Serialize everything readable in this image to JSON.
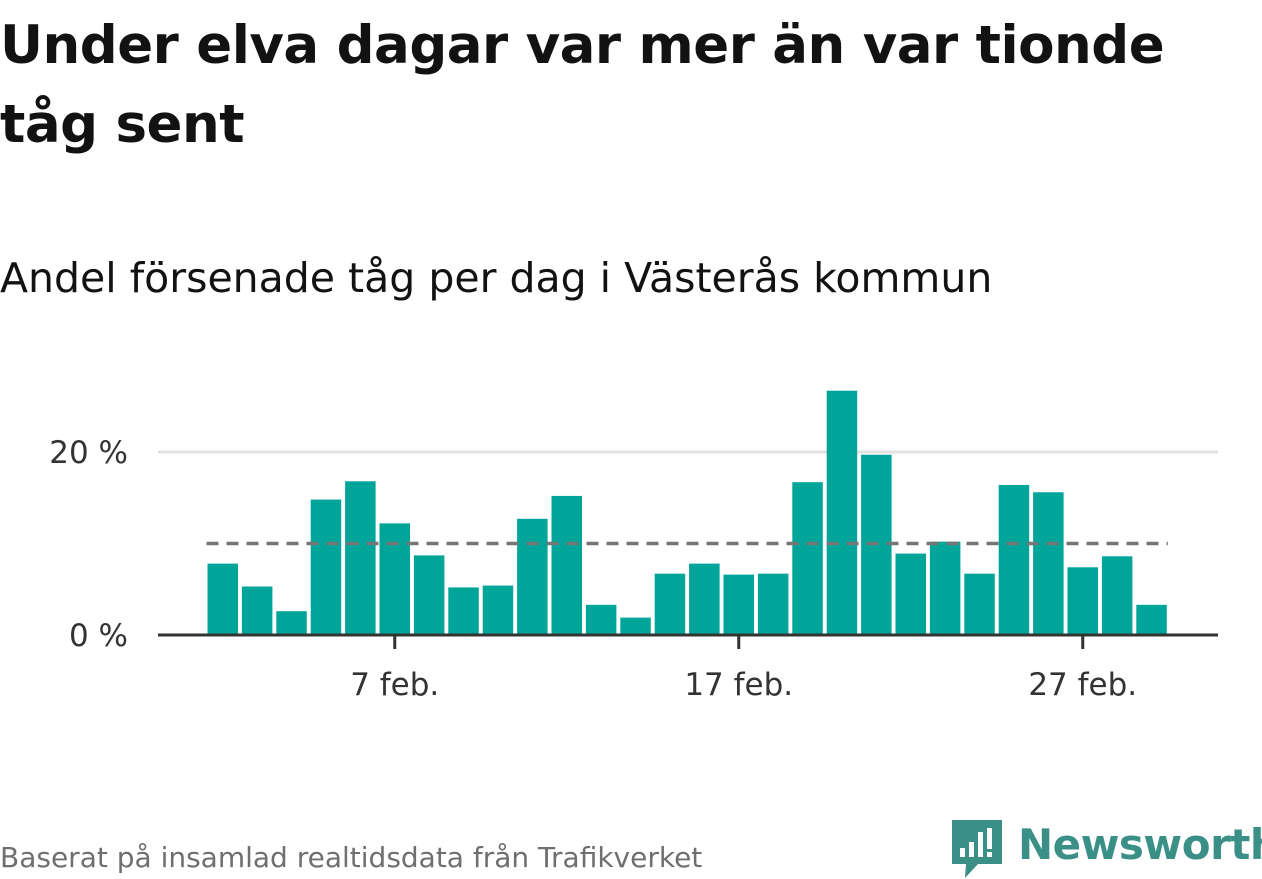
{
  "title": "Under elva dagar var mer än var tionde tåg sent",
  "subtitle": "Andel försenade tåg per dag i Västerås kommun",
  "source": "Baserat på insamlad realtidsdata från Trafikverket",
  "logo_text": "Newsworthy",
  "colors": {
    "bar": "#00a59a",
    "reference_line": "#767676",
    "grid": "#e2e2e2",
    "axis": "#333333",
    "brand": "#3a8f87"
  },
  "chart_data": {
    "type": "bar",
    "title": "Andel försenade tåg per dag i Västerås kommun",
    "xlabel": "",
    "ylabel": "",
    "x_start": "2 feb.",
    "categories": [
      "2 feb.",
      "3 feb.",
      "4 feb.",
      "5 feb.",
      "6 feb.",
      "7 feb.",
      "8 feb.",
      "9 feb.",
      "10 feb.",
      "11 feb.",
      "12 feb.",
      "13 feb.",
      "14 feb.",
      "15 feb.",
      "16 feb.",
      "17 feb.",
      "18 feb.",
      "19 feb.",
      "20 feb.",
      "21 feb.",
      "22 feb.",
      "23 feb.",
      "24 feb.",
      "25 feb.",
      "26 feb.",
      "27 feb.",
      "28 feb.",
      "1 mars"
    ],
    "values": [
      7.8,
      5.3,
      2.6,
      14.8,
      16.8,
      12.2,
      8.7,
      5.2,
      5.4,
      12.7,
      15.2,
      3.3,
      1.9,
      6.7,
      7.8,
      6.6,
      6.7,
      16.7,
      26.7,
      19.7,
      8.9,
      10.2,
      6.7,
      16.4,
      15.6,
      7.4,
      8.6,
      3.3
    ],
    "reference_value": 10,
    "ylim": [
      0,
      28
    ],
    "yticks": [
      {
        "value": 0,
        "label": "0 %"
      },
      {
        "value": 20,
        "label": "20 %"
      }
    ],
    "xticks": [
      {
        "index": 5,
        "label": "7 feb."
      },
      {
        "index": 15,
        "label": "17 feb."
      },
      {
        "index": 25,
        "label": "27 feb."
      }
    ],
    "grid": true,
    "legend": "none"
  }
}
